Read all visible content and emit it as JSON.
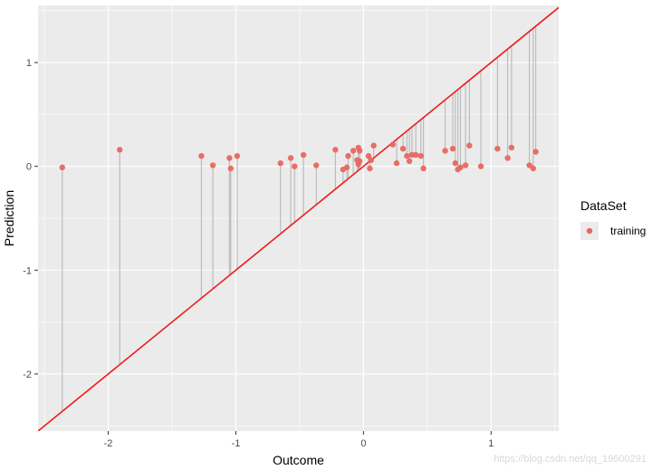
{
  "chart_data": {
    "type": "scatter",
    "title": "",
    "xlabel": "Outcome",
    "ylabel": "Prediction",
    "xlim": [
      -2.55,
      1.53
    ],
    "ylim": [
      -2.55,
      1.55
    ],
    "x_ticks": [
      -2,
      -1,
      0,
      1
    ],
    "y_ticks": [
      -2,
      -1,
      0,
      1
    ],
    "x_tick_labels": [
      "-2",
      "-1",
      "0",
      "1"
    ],
    "y_tick_labels": [
      "-2",
      "-1",
      "0",
      "1"
    ],
    "grid": true,
    "legend_title": "DataSet",
    "legend_position": "right",
    "series": [
      {
        "name": "training",
        "color": "#e8675f",
        "points": [
          {
            "x": -2.36,
            "y": -0.01
          },
          {
            "x": -1.91,
            "y": 0.16
          },
          {
            "x": -1.27,
            "y": 0.1
          },
          {
            "x": -1.18,
            "y": 0.01
          },
          {
            "x": -1.05,
            "y": 0.08
          },
          {
            "x": -1.04,
            "y": -0.02
          },
          {
            "x": -0.99,
            "y": 0.1
          },
          {
            "x": -0.65,
            "y": 0.03
          },
          {
            "x": -0.57,
            "y": 0.08
          },
          {
            "x": -0.54,
            "y": 0.0
          },
          {
            "x": -0.47,
            "y": 0.11
          },
          {
            "x": -0.37,
            "y": 0.01
          },
          {
            "x": -0.22,
            "y": 0.16
          },
          {
            "x": -0.16,
            "y": -0.03
          },
          {
            "x": -0.13,
            "y": -0.01
          },
          {
            "x": -0.12,
            "y": 0.1
          },
          {
            "x": -0.08,
            "y": 0.15
          },
          {
            "x": -0.05,
            "y": 0.06
          },
          {
            "x": -0.04,
            "y": 0.18
          },
          {
            "x": -0.04,
            "y": 0.02
          },
          {
            "x": -0.03,
            "y": 0.15
          },
          {
            "x": -0.03,
            "y": 0.05
          },
          {
            "x": 0.04,
            "y": 0.1
          },
          {
            "x": 0.05,
            "y": -0.02
          },
          {
            "x": 0.06,
            "y": 0.06
          },
          {
            "x": 0.08,
            "y": 0.2
          },
          {
            "x": 0.23,
            "y": 0.21
          },
          {
            "x": 0.26,
            "y": 0.03
          },
          {
            "x": 0.31,
            "y": 0.17
          },
          {
            "x": 0.34,
            "y": 0.1
          },
          {
            "x": 0.36,
            "y": 0.05
          },
          {
            "x": 0.38,
            "y": 0.11
          },
          {
            "x": 0.41,
            "y": 0.11
          },
          {
            "x": 0.45,
            "y": 0.1
          },
          {
            "x": 0.47,
            "y": -0.02
          },
          {
            "x": 0.64,
            "y": 0.15
          },
          {
            "x": 0.7,
            "y": 0.17
          },
          {
            "x": 0.72,
            "y": 0.03
          },
          {
            "x": 0.74,
            "y": -0.03
          },
          {
            "x": 0.76,
            "y": -0.01
          },
          {
            "x": 0.8,
            "y": 0.01
          },
          {
            "x": 0.83,
            "y": 0.2
          },
          {
            "x": 0.92,
            "y": 0.0
          },
          {
            "x": 1.05,
            "y": 0.17
          },
          {
            "x": 1.13,
            "y": 0.08
          },
          {
            "x": 1.16,
            "y": 0.18
          },
          {
            "x": 1.3,
            "y": 0.01
          },
          {
            "x": 1.33,
            "y": -0.02
          },
          {
            "x": 1.35,
            "y": 0.14
          }
        ]
      }
    ],
    "reference_line": {
      "slope": 1,
      "intercept": 0,
      "color": "#ee1c1c"
    },
    "residual_segment_color": "#b8b8b8",
    "panel_background": "#ebebeb",
    "grid_color": "#ffffff"
  },
  "watermark": "https://blog.csdn.net/qq_19600291"
}
